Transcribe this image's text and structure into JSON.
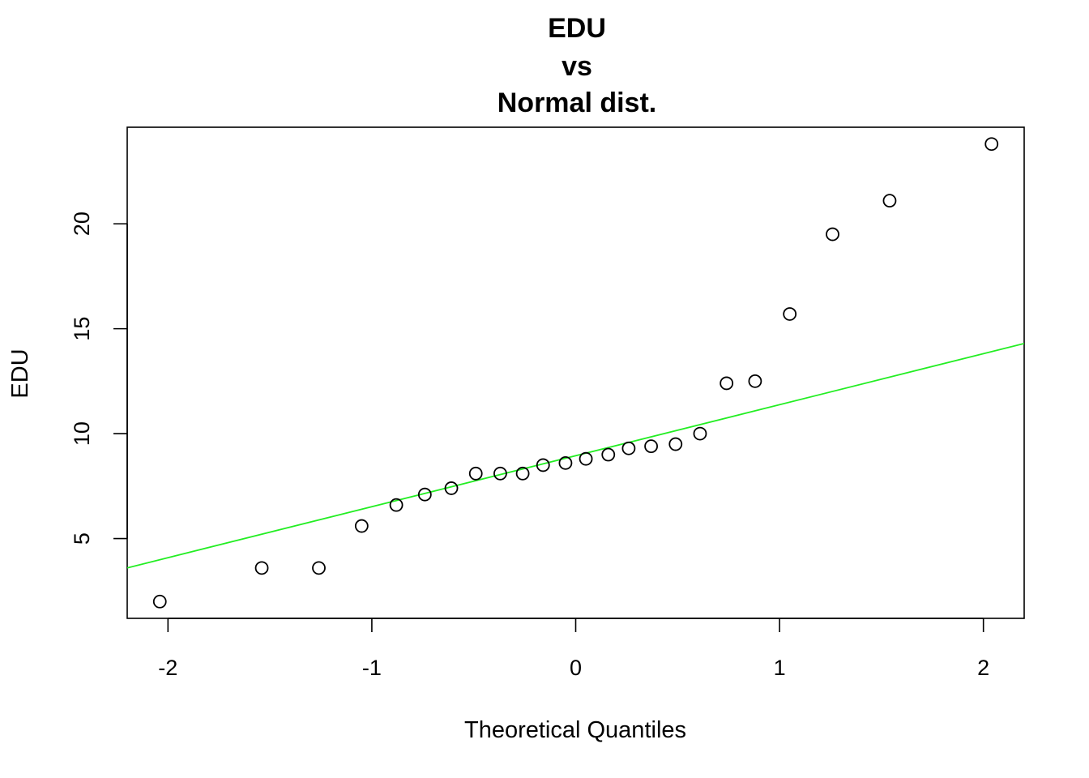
{
  "chart_data": {
    "type": "scatter",
    "title_lines": [
      "EDU",
      "vs",
      "Normal dist."
    ],
    "xlabel": "Theoretical Quantiles",
    "ylabel": "EDU",
    "xlim": [
      -2.2,
      2.2
    ],
    "ylim": [
      1.2,
      24.6
    ],
    "x_ticks": [
      {
        "value": -2,
        "label": "-2"
      },
      {
        "value": -1,
        "label": "-1"
      },
      {
        "value": 0,
        "label": "0"
      },
      {
        "value": 1,
        "label": "1"
      },
      {
        "value": 2,
        "label": "2"
      }
    ],
    "y_ticks": [
      {
        "value": 5,
        "label": "5"
      },
      {
        "value": 10,
        "label": "10"
      },
      {
        "value": 15,
        "label": "15"
      },
      {
        "value": 20,
        "label": "20"
      }
    ],
    "grid": false,
    "series": [
      {
        "points": [
          {
            "x": -2.04,
            "y": 2.0
          },
          {
            "x": -1.54,
            "y": 3.6
          },
          {
            "x": -1.26,
            "y": 3.6
          },
          {
            "x": -1.05,
            "y": 5.6
          },
          {
            "x": -0.88,
            "y": 6.6
          },
          {
            "x": -0.74,
            "y": 7.1
          },
          {
            "x": -0.61,
            "y": 7.4
          },
          {
            "x": -0.49,
            "y": 8.1
          },
          {
            "x": -0.37,
            "y": 8.1
          },
          {
            "x": -0.26,
            "y": 8.1
          },
          {
            "x": -0.16,
            "y": 8.5
          },
          {
            "x": -0.05,
            "y": 8.6
          },
          {
            "x": 0.05,
            "y": 8.8
          },
          {
            "x": 0.16,
            "y": 9.0
          },
          {
            "x": 0.26,
            "y": 9.3
          },
          {
            "x": 0.37,
            "y": 9.4
          },
          {
            "x": 0.49,
            "y": 9.5
          },
          {
            "x": 0.61,
            "y": 10.0
          },
          {
            "x": 0.74,
            "y": 12.4
          },
          {
            "x": 0.88,
            "y": 12.5
          },
          {
            "x": 1.05,
            "y": 15.7
          },
          {
            "x": 1.26,
            "y": 19.5
          },
          {
            "x": 1.54,
            "y": 21.1
          },
          {
            "x": 2.04,
            "y": 23.8
          }
        ],
        "marker": "open-circle",
        "color": "#000000"
      }
    ],
    "reference_line": {
      "intercept": 8.95,
      "slope": 2.43,
      "color": "#22ee22"
    }
  }
}
